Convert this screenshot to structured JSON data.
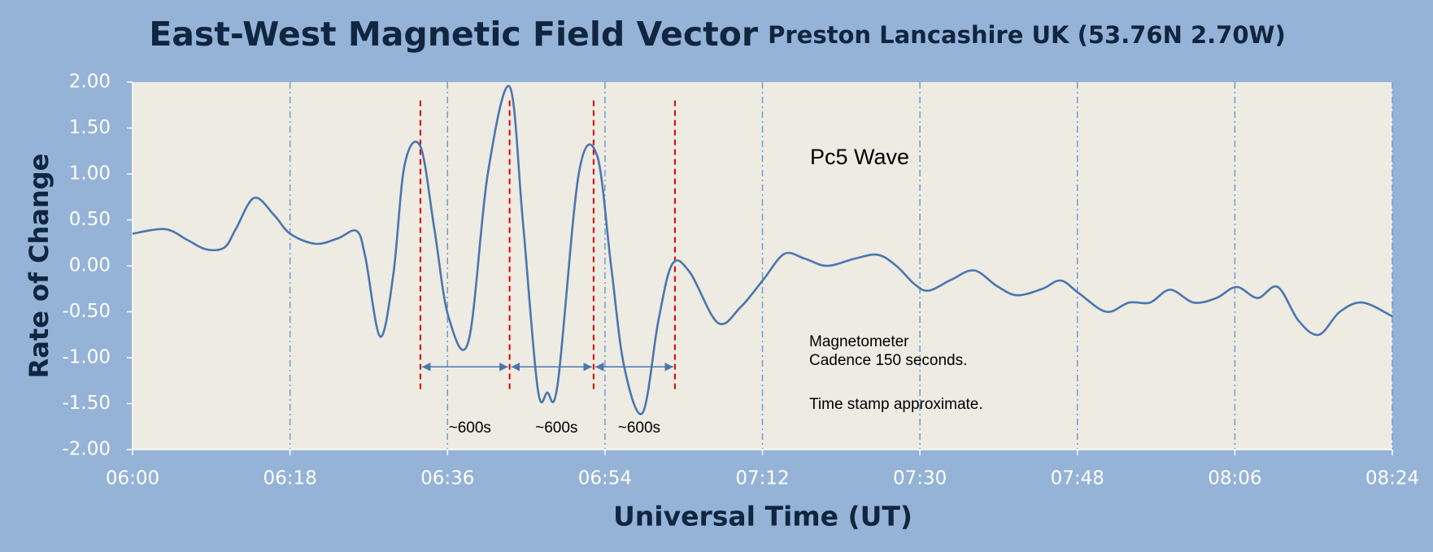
{
  "chart_data": {
    "type": "line",
    "title": "East-West Magnetic Field Vector",
    "subtitle": "Preston Lancashire UK (53.76N 2.70W)",
    "x_label": "Universal Time (UT)",
    "y_label": "Rate of Change",
    "x": [
      0,
      3.7,
      6.3,
      8.4,
      10.5,
      11.8,
      13.9,
      16.2,
      18,
      20.9,
      23.5,
      25.6,
      26.6,
      28.3,
      29.8,
      31.1,
      32.9,
      34.5,
      36.1,
      38.4,
      40.6,
      43.1,
      44.6,
      46.3,
      47.4,
      48.6,
      51.0,
      53.1,
      54.7,
      56.2,
      58.3,
      60.1,
      61.7,
      63.7,
      66.9,
      69.5,
      72.1,
      74.5,
      76.8,
      79.4,
      82.6,
      85.2,
      87.3,
      89.4,
      91.0,
      93.6,
      96.2,
      98.8,
      101.1,
      104.0,
      106.1,
      108.2,
      111.3,
      113.9,
      116.3,
      118.6,
      121.3,
      123.9,
      126.2,
      128.6,
      130.9,
      133.3,
      135.6,
      138.0,
      140.6,
      144
    ],
    "series": [
      {
        "name": "East-West",
        "color": "#4a76b0",
        "values": [
          0.35,
          0.4,
          0.28,
          0.18,
          0.2,
          0.4,
          0.74,
          0.55,
          0.35,
          0.24,
          0.3,
          0.38,
          0.1,
          -0.77,
          -0.1,
          1.1,
          1.3,
          0.4,
          -0.55,
          -0.82,
          1.0,
          1.95,
          0.5,
          -1.33,
          -1.38,
          -1.28,
          1.0,
          1.2,
          0.0,
          -1.1,
          -1.6,
          -0.6,
          0.02,
          -0.07,
          -0.62,
          -0.45,
          -0.15,
          0.13,
          0.08,
          0.0,
          0.08,
          0.12,
          0.0,
          -0.2,
          -0.27,
          -0.15,
          -0.05,
          -0.22,
          -0.32,
          -0.25,
          -0.16,
          -0.3,
          -0.5,
          -0.4,
          -0.4,
          -0.26,
          -0.4,
          -0.35,
          -0.23,
          -0.35,
          -0.23,
          -0.6,
          -0.75,
          -0.5,
          -0.4,
          -0.55
        ]
      }
    ],
    "xlim": [
      0,
      144
    ],
    "xticks": [
      {
        "value": 0,
        "label": "06:00"
      },
      {
        "value": 18,
        "label": "06:18"
      },
      {
        "value": 36,
        "label": "06:36"
      },
      {
        "value": 54,
        "label": "06:54"
      },
      {
        "value": 72,
        "label": "07:12"
      },
      {
        "value": 90,
        "label": "07:30"
      },
      {
        "value": 108,
        "label": "07:48"
      },
      {
        "value": 126,
        "label": "08:06"
      },
      {
        "value": 144,
        "label": "08:24"
      }
    ],
    "ylim": [
      -2,
      2
    ],
    "yticks": [
      {
        "value": 2,
        "label": "2.00"
      },
      {
        "value": 1.5,
        "label": "1.50"
      },
      {
        "value": 1,
        "label": "1.00"
      },
      {
        "value": 0.5,
        "label": "0.50"
      },
      {
        "value": 0,
        "label": "0.00"
      },
      {
        "value": -0.5,
        "label": "-0.50"
      },
      {
        "value": -1,
        "label": "-1.00"
      },
      {
        "value": -1.5,
        "label": "-1.50"
      },
      {
        "value": -2,
        "label": "-2.00"
      }
    ],
    "grid": true,
    "markers": [
      32.9,
      43.1,
      52.7,
      62.0
    ],
    "period_labels": [
      "~600s",
      "~600s",
      "~600s"
    ],
    "annotations": [
      "Pc5 Wave",
      "Magnetometer",
      "Cadence 150 seconds.",
      "Time stamp approximate."
    ]
  }
}
